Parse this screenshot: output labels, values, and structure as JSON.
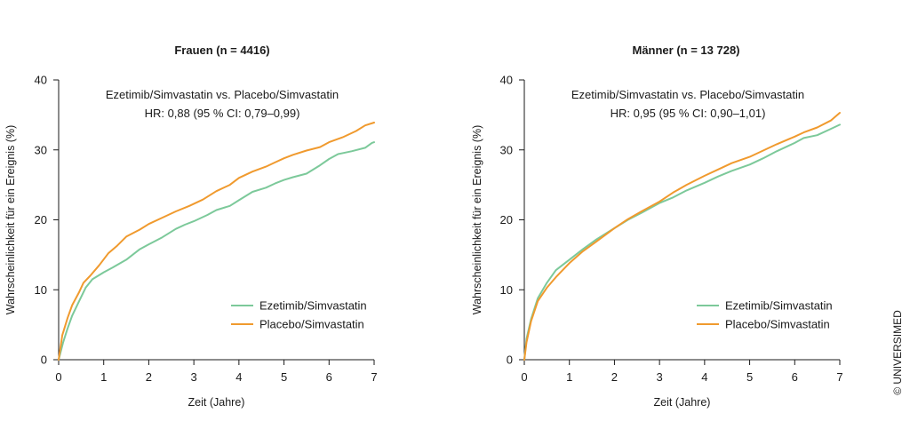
{
  "chart_data": [
    {
      "type": "line",
      "title": "Frauen (n = 4416)",
      "annotation_line1": "Ezetimib/Simvastatin vs. Placebo/Simvastatin",
      "annotation_line2": "HR: 0,88 (95 % CI: 0,79–0,99)",
      "xlabel": "Zeit (Jahre)",
      "ylabel": "Wahrscheinlichkeit für ein Ereignis (%)",
      "xlim": [
        0,
        7
      ],
      "ylim": [
        0,
        40
      ],
      "xticks": [
        0,
        1,
        2,
        3,
        4,
        5,
        6,
        7
      ],
      "yticks": [
        0,
        10,
        20,
        30,
        40
      ],
      "grid": false,
      "legend_position": "bottom-right",
      "series": [
        {
          "name": "Ezetimib/Simvastatin",
          "color": "#7cc99a",
          "points": [
            [
              0,
              0
            ],
            [
              0.1,
              2.5
            ],
            [
              0.2,
              4.5
            ],
            [
              0.3,
              6.3
            ],
            [
              0.45,
              8.3
            ],
            [
              0.6,
              10.3
            ],
            [
              0.75,
              11.5
            ],
            [
              1,
              12.5
            ],
            [
              1.2,
              13.2
            ],
            [
              1.5,
              14.3
            ],
            [
              1.8,
              15.8
            ],
            [
              2,
              16.5
            ],
            [
              2.3,
              17.5
            ],
            [
              2.6,
              18.7
            ],
            [
              2.8,
              19.3
            ],
            [
              3,
              19.8
            ],
            [
              3.3,
              20.7
            ],
            [
              3.5,
              21.4
            ],
            [
              3.8,
              22
            ],
            [
              4,
              22.8
            ],
            [
              4.3,
              24
            ],
            [
              4.6,
              24.6
            ],
            [
              4.8,
              25.2
            ],
            [
              5,
              25.7
            ],
            [
              5.2,
              26.1
            ],
            [
              5.5,
              26.6
            ],
            [
              5.8,
              27.8
            ],
            [
              6,
              28.7
            ],
            [
              6.2,
              29.4
            ],
            [
              6.5,
              29.8
            ],
            [
              6.8,
              30.3
            ],
            [
              6.95,
              31
            ],
            [
              7,
              31.1
            ]
          ]
        },
        {
          "name": "Placebo/Simvastatin",
          "color": "#f09a2e",
          "points": [
            [
              0,
              0
            ],
            [
              0.08,
              3.5
            ],
            [
              0.2,
              6
            ],
            [
              0.3,
              7.8
            ],
            [
              0.45,
              9.6
            ],
            [
              0.55,
              11
            ],
            [
              0.7,
              12
            ],
            [
              0.9,
              13.5
            ],
            [
              1.1,
              15.2
            ],
            [
              1.3,
              16.3
            ],
            [
              1.5,
              17.6
            ],
            [
              1.8,
              18.6
            ],
            [
              2,
              19.4
            ],
            [
              2.3,
              20.3
            ],
            [
              2.6,
              21.2
            ],
            [
              2.9,
              22
            ],
            [
              3.2,
              22.9
            ],
            [
              3.5,
              24.1
            ],
            [
              3.8,
              25
            ],
            [
              4,
              26
            ],
            [
              4.3,
              26.9
            ],
            [
              4.6,
              27.6
            ],
            [
              4.8,
              28.2
            ],
            [
              5,
              28.8
            ],
            [
              5.2,
              29.3
            ],
            [
              5.5,
              29.9
            ],
            [
              5.8,
              30.4
            ],
            [
              6,
              31.1
            ],
            [
              6.3,
              31.8
            ],
            [
              6.6,
              32.7
            ],
            [
              6.8,
              33.5
            ],
            [
              7,
              33.9
            ]
          ]
        }
      ]
    },
    {
      "type": "line",
      "title": "Männer (n = 13 728)",
      "annotation_line1": "Ezetimib/Simvastatin vs. Placebo/Simvastatin",
      "annotation_line2": "HR: 0,95 (95 % CI: 0,90–1,01)",
      "xlabel": "Zeit (Jahre)",
      "ylabel": "Wahrscheinlichkeit für ein Ereignis (%)",
      "xlim": [
        0,
        7
      ],
      "ylim": [
        0,
        40
      ],
      "xticks": [
        0,
        1,
        2,
        3,
        4,
        5,
        6,
        7
      ],
      "yticks": [
        0,
        10,
        20,
        30,
        40
      ],
      "grid": false,
      "legend_position": "bottom-right",
      "series": [
        {
          "name": "Ezetimib/Simvastatin",
          "color": "#7cc99a",
          "points": [
            [
              0,
              0
            ],
            [
              0.05,
              3
            ],
            [
              0.15,
              5.8
            ],
            [
              0.3,
              8.8
            ],
            [
              0.5,
              11
            ],
            [
              0.7,
              12.8
            ],
            [
              1,
              14.3
            ],
            [
              1.3,
              15.8
            ],
            [
              1.6,
              17.2
            ],
            [
              2,
              18.8
            ],
            [
              2.3,
              20
            ],
            [
              2.6,
              21
            ],
            [
              3,
              22.4
            ],
            [
              3.3,
              23.2
            ],
            [
              3.6,
              24.2
            ],
            [
              4,
              25.3
            ],
            [
              4.3,
              26.2
            ],
            [
              4.6,
              27
            ],
            [
              5,
              27.9
            ],
            [
              5.3,
              28.8
            ],
            [
              5.6,
              29.8
            ],
            [
              6,
              31
            ],
            [
              6.2,
              31.7
            ],
            [
              6.5,
              32.1
            ],
            [
              6.8,
              33
            ],
            [
              7,
              33.6
            ]
          ]
        },
        {
          "name": "Placebo/Simvastatin",
          "color": "#f09a2e",
          "points": [
            [
              0,
              0
            ],
            [
              0.05,
              2.5
            ],
            [
              0.15,
              5.5
            ],
            [
              0.3,
              8.4
            ],
            [
              0.5,
              10.3
            ],
            [
              0.7,
              11.8
            ],
            [
              1,
              13.8
            ],
            [
              1.3,
              15.5
            ],
            [
              1.6,
              16.9
            ],
            [
              2,
              18.8
            ],
            [
              2.3,
              20.1
            ],
            [
              2.6,
              21.2
            ],
            [
              3,
              22.6
            ],
            [
              3.3,
              23.9
            ],
            [
              3.6,
              25
            ],
            [
              4,
              26.3
            ],
            [
              4.3,
              27.2
            ],
            [
              4.6,
              28.1
            ],
            [
              5,
              29
            ],
            [
              5.3,
              29.9
            ],
            [
              5.6,
              30.8
            ],
            [
              6,
              31.9
            ],
            [
              6.2,
              32.5
            ],
            [
              6.5,
              33.2
            ],
            [
              6.8,
              34.2
            ],
            [
              7,
              35.3
            ]
          ]
        }
      ]
    }
  ],
  "credit": "© UNIVERSIMED"
}
